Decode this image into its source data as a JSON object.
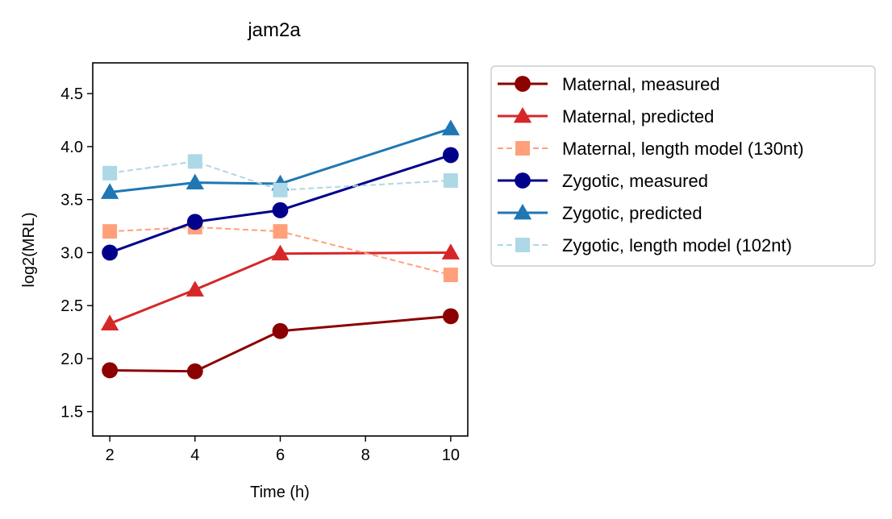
{
  "chart_data": {
    "type": "line",
    "title": "jam2a",
    "xlabel": "Time (h)",
    "ylabel": "log2(MRL)",
    "x_ticks": [
      2,
      4,
      6,
      8,
      10
    ],
    "y_ticks": [
      1.5,
      2.0,
      2.5,
      3.0,
      3.5,
      4.0,
      4.5
    ],
    "x_tick_labels": [
      "2",
      "4",
      "6",
      "8",
      "10"
    ],
    "y_tick_labels": [
      "1.5",
      "2.0",
      "2.5",
      "3.0",
      "3.5",
      "4.0",
      "4.5"
    ],
    "xlim": [
      1.6,
      10.4
    ],
    "ylim": [
      1.27,
      4.79
    ],
    "grid": false,
    "legend_placement": "outside-right",
    "series": [
      {
        "name": "Maternal, measured",
        "color": "#8b0000",
        "marker": "circle",
        "dashed": false,
        "x": [
          2,
          4,
          6,
          10
        ],
        "y": [
          1.89,
          1.88,
          2.26,
          2.4
        ]
      },
      {
        "name": "Maternal, predicted",
        "color": "#d62728",
        "marker": "triangle",
        "dashed": false,
        "x": [
          2,
          4,
          6,
          10
        ],
        "y": [
          2.33,
          2.65,
          2.99,
          3.0
        ]
      },
      {
        "name": "Maternal, length model (130nt)",
        "color": "#ffa07a",
        "marker": "square",
        "dashed": true,
        "x": [
          2,
          4,
          6,
          10
        ],
        "y": [
          3.2,
          3.24,
          3.2,
          2.79
        ]
      },
      {
        "name": "Zygotic, measured",
        "color": "#00008b",
        "marker": "circle",
        "dashed": false,
        "x": [
          2,
          4,
          6,
          10
        ],
        "y": [
          3.0,
          3.29,
          3.4,
          3.92
        ]
      },
      {
        "name": "Zygotic, predicted",
        "color": "#1f77b4",
        "marker": "triangle",
        "dashed": false,
        "x": [
          2,
          4,
          6,
          10
        ],
        "y": [
          3.57,
          3.66,
          3.65,
          4.17
        ]
      },
      {
        "name": "Zygotic, length model (102nt)",
        "color": "#add8e6",
        "marker": "square",
        "dashed": true,
        "x": [
          2,
          4,
          6,
          10
        ],
        "y": [
          3.75,
          3.86,
          3.59,
          3.68
        ]
      }
    ]
  }
}
